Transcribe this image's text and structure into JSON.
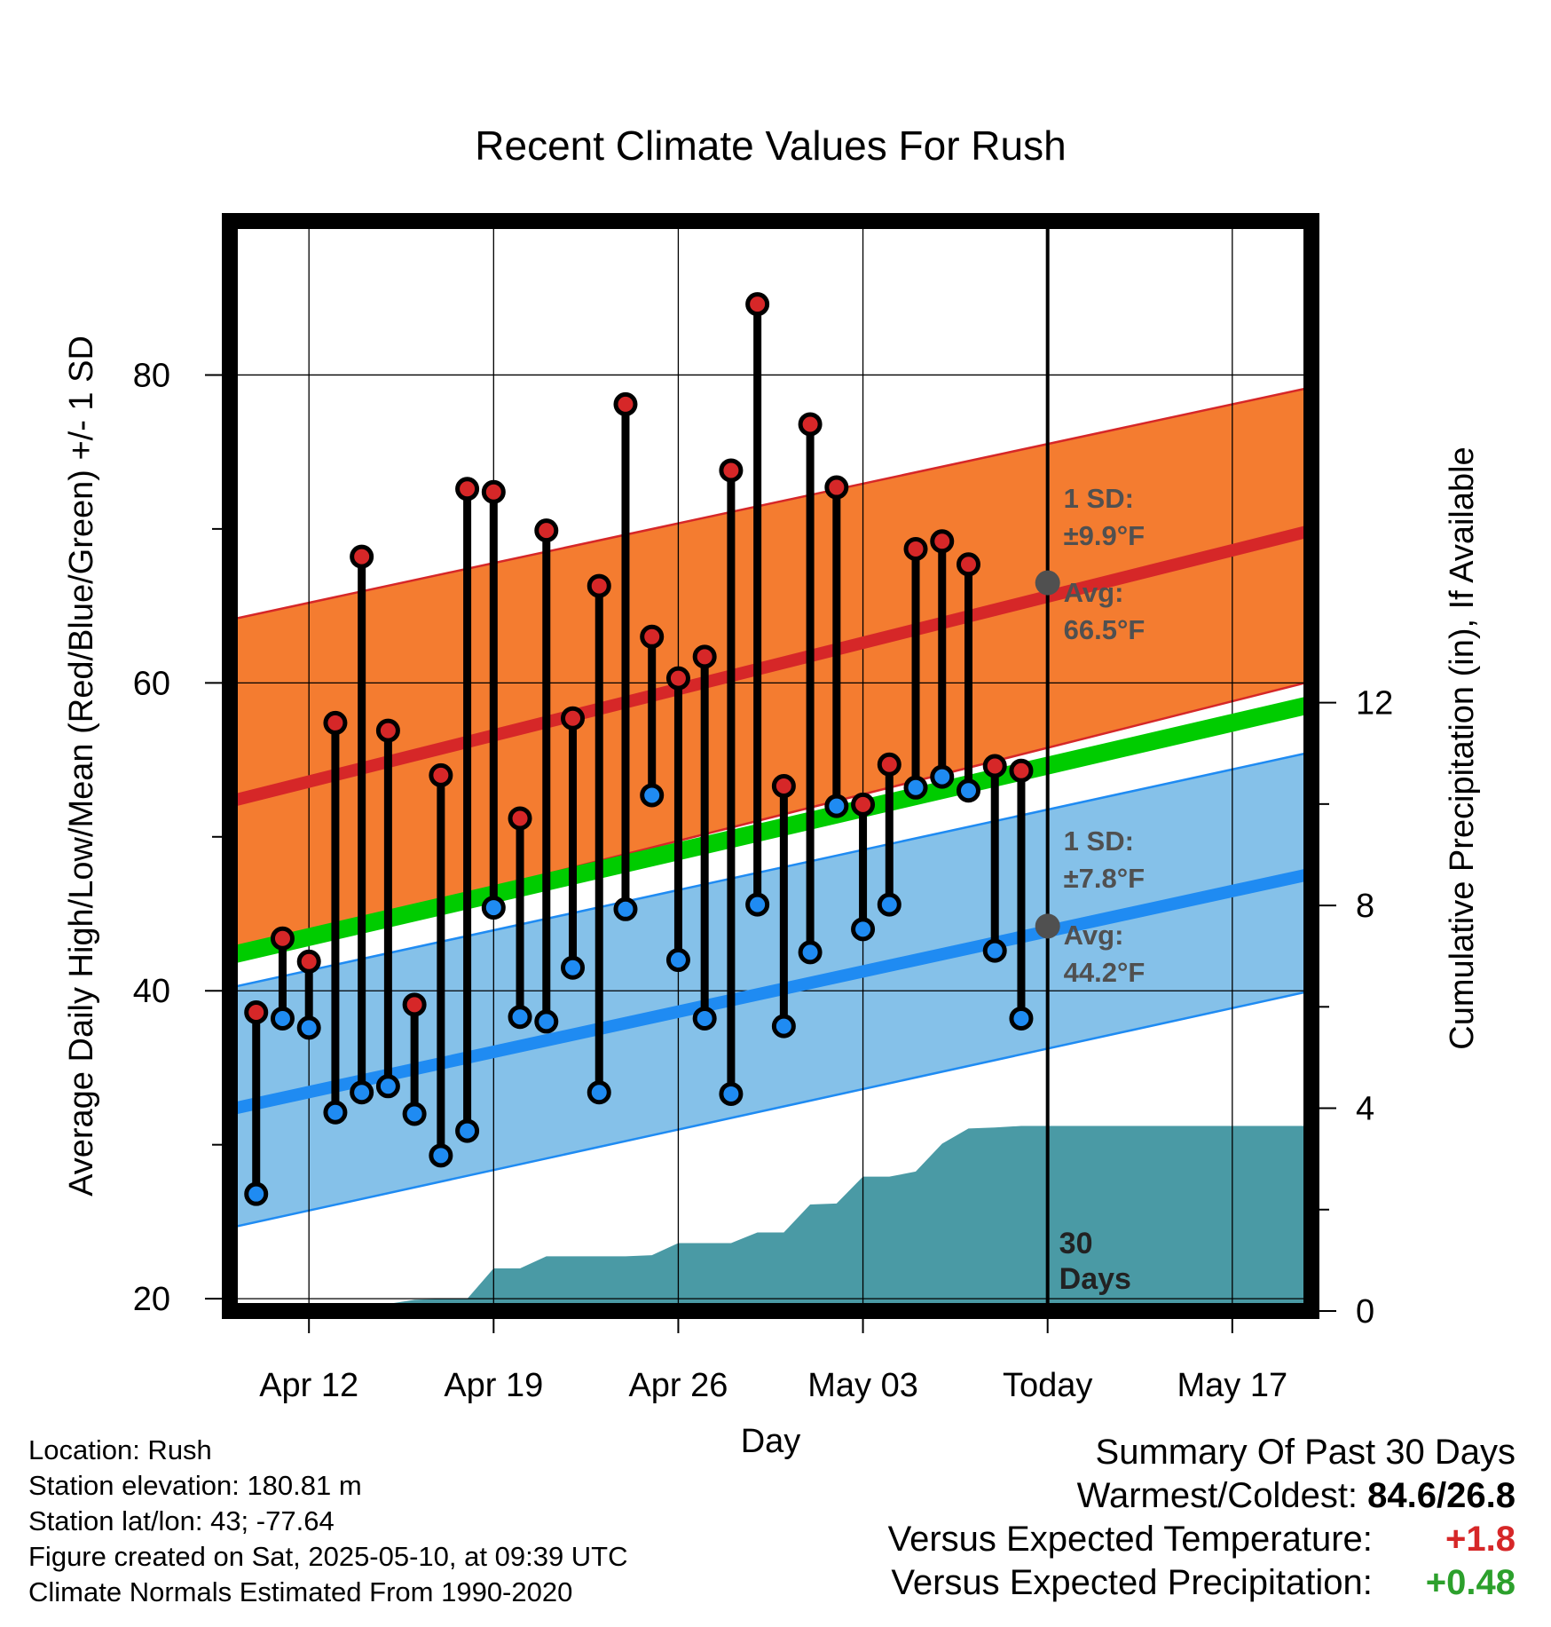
{
  "chart_data": {
    "type": "line",
    "title": "Recent Climate Values For Rush",
    "xlabel": "Day",
    "ylabel": "Average Daily High/Low/Mean (Red/Blue/Green) +/- 1 SD",
    "ylabel_right": "Cumulative Precipitation (in), If Available",
    "x_ticks": [
      "Apr 12",
      "Apr 19",
      "Apr 26",
      "May 03",
      "Today",
      "May 17"
    ],
    "y_ticks": [
      "20",
      "40",
      "60",
      "80"
    ],
    "y2_ticks": [
      "0",
      "4",
      "8",
      "12"
    ],
    "xlim": [
      "2025-04-09",
      "2025-05-20"
    ],
    "ylim": [
      19.2,
      90
    ],
    "y2lim": [
      0,
      21.5
    ],
    "today": "2025-05-10",
    "grid": true,
    "normal_high": {
      "x": [
        "2025-04-09",
        "2025-05-20"
      ],
      "avg": [
        52.3,
        69.9
      ],
      "lower": [
        42.4,
        60.1
      ],
      "upper": [
        64.1,
        79.2
      ],
      "sd_label": "1 SD:",
      "sd_value": "±9.9°F",
      "avg_label": "Avg:",
      "avg_value": "66.5°F",
      "avg_today": 66.5
    },
    "normal_low": {
      "x": [
        "2025-04-09",
        "2025-05-20"
      ],
      "avg": [
        32.3,
        47.6
      ],
      "lower": [
        24.6,
        40.0
      ],
      "upper": [
        40.2,
        55.5
      ],
      "sd_label": "1 SD:",
      "sd_value": "±7.8°F",
      "avg_label": "Avg:",
      "avg_value": "44.2°F",
      "avg_today": 44.2
    },
    "normal_mean": {
      "x": [
        "2025-04-09",
        "2025-05-20"
      ],
      "values": [
        42.3,
        58.6
      ]
    },
    "daily": {
      "dates": [
        "2025-04-10",
        "2025-04-11",
        "2025-04-12",
        "2025-04-13",
        "2025-04-14",
        "2025-04-15",
        "2025-04-16",
        "2025-04-17",
        "2025-04-18",
        "2025-04-19",
        "2025-04-20",
        "2025-04-21",
        "2025-04-22",
        "2025-04-23",
        "2025-04-24",
        "2025-04-25",
        "2025-04-26",
        "2025-04-27",
        "2025-04-28",
        "2025-04-29",
        "2025-04-30",
        "2025-05-01",
        "2025-05-02",
        "2025-05-03",
        "2025-05-04",
        "2025-05-05",
        "2025-05-06",
        "2025-05-07",
        "2025-05-08",
        "2025-05-09"
      ],
      "high": [
        38.6,
        43.4,
        41.9,
        57.4,
        68.2,
        56.9,
        39.1,
        54.0,
        72.6,
        72.4,
        51.2,
        69.9,
        57.7,
        66.3,
        78.1,
        63.0,
        60.3,
        61.7,
        73.8,
        84.6,
        53.3,
        76.8,
        72.7,
        52.1,
        54.7,
        68.7,
        69.2,
        67.7,
        54.6,
        54.3
      ],
      "low": [
        26.8,
        38.2,
        37.6,
        32.1,
        33.4,
        33.8,
        32.0,
        29.3,
        30.9,
        45.4,
        38.3,
        38.0,
        41.5,
        33.4,
        45.3,
        52.7,
        42.0,
        38.2,
        33.3,
        45.6,
        37.7,
        42.5,
        52.0,
        44.0,
        45.6,
        53.2,
        53.9,
        53.0,
        42.6,
        38.2
      ]
    },
    "precip_cumulative": {
      "dates": [
        "2025-04-09",
        "2025-04-10",
        "2025-04-11",
        "2025-04-12",
        "2025-04-13",
        "2025-04-14",
        "2025-04-15",
        "2025-04-16",
        "2025-04-17",
        "2025-04-18",
        "2025-04-19",
        "2025-04-20",
        "2025-04-21",
        "2025-04-22",
        "2025-04-23",
        "2025-04-24",
        "2025-04-25",
        "2025-04-26",
        "2025-04-27",
        "2025-04-28",
        "2025-04-29",
        "2025-04-30",
        "2025-05-01",
        "2025-05-02",
        "2025-05-03",
        "2025-05-04",
        "2025-05-05",
        "2025-05-06",
        "2025-05-07",
        "2025-05-08",
        "2025-05-09",
        "2025-05-10",
        "2025-05-20"
      ],
      "values": [
        0.0,
        0.05,
        0.12,
        0.12,
        0.14,
        0.14,
        0.14,
        0.22,
        0.24,
        0.24,
        0.84,
        0.84,
        1.08,
        1.08,
        1.08,
        1.08,
        1.1,
        1.34,
        1.34,
        1.34,
        1.55,
        1.55,
        2.1,
        2.12,
        2.65,
        2.65,
        2.75,
        3.3,
        3.6,
        3.62,
        3.65,
        3.65,
        3.65
      ]
    },
    "today_label": "Today",
    "days_label": [
      "30",
      "Days"
    ],
    "colors": {
      "high_band": "#f47c30",
      "high_avg": "#d62728",
      "low_band": "#85c1e9",
      "low_avg": "#1f8bf2",
      "mean": "#00cc00",
      "precip": "#4a9aa5",
      "high_dot": "#d62728",
      "low_dot": "#1f8bf2",
      "label_gray": "#505050"
    }
  },
  "info": {
    "location": "Location: Rush",
    "elevation": "Station elevation: 180.81 m",
    "latlon": "Station lat/lon: 43; -77.64",
    "created": "Figure created on Sat, 2025-05-10, at 09:39 UTC",
    "normals": "Climate Normals Estimated From 1990-2020"
  },
  "summary": {
    "title": "Summary Of Past 30 Days",
    "warm_cold_label": "Warmest/Coldest:",
    "warm_cold_value": "84.6/26.8",
    "temp_label": "Versus Expected Temperature:",
    "temp_value": "+1.8",
    "precip_label": "Versus Expected Precipitation:",
    "precip_value": "+0.48"
  }
}
